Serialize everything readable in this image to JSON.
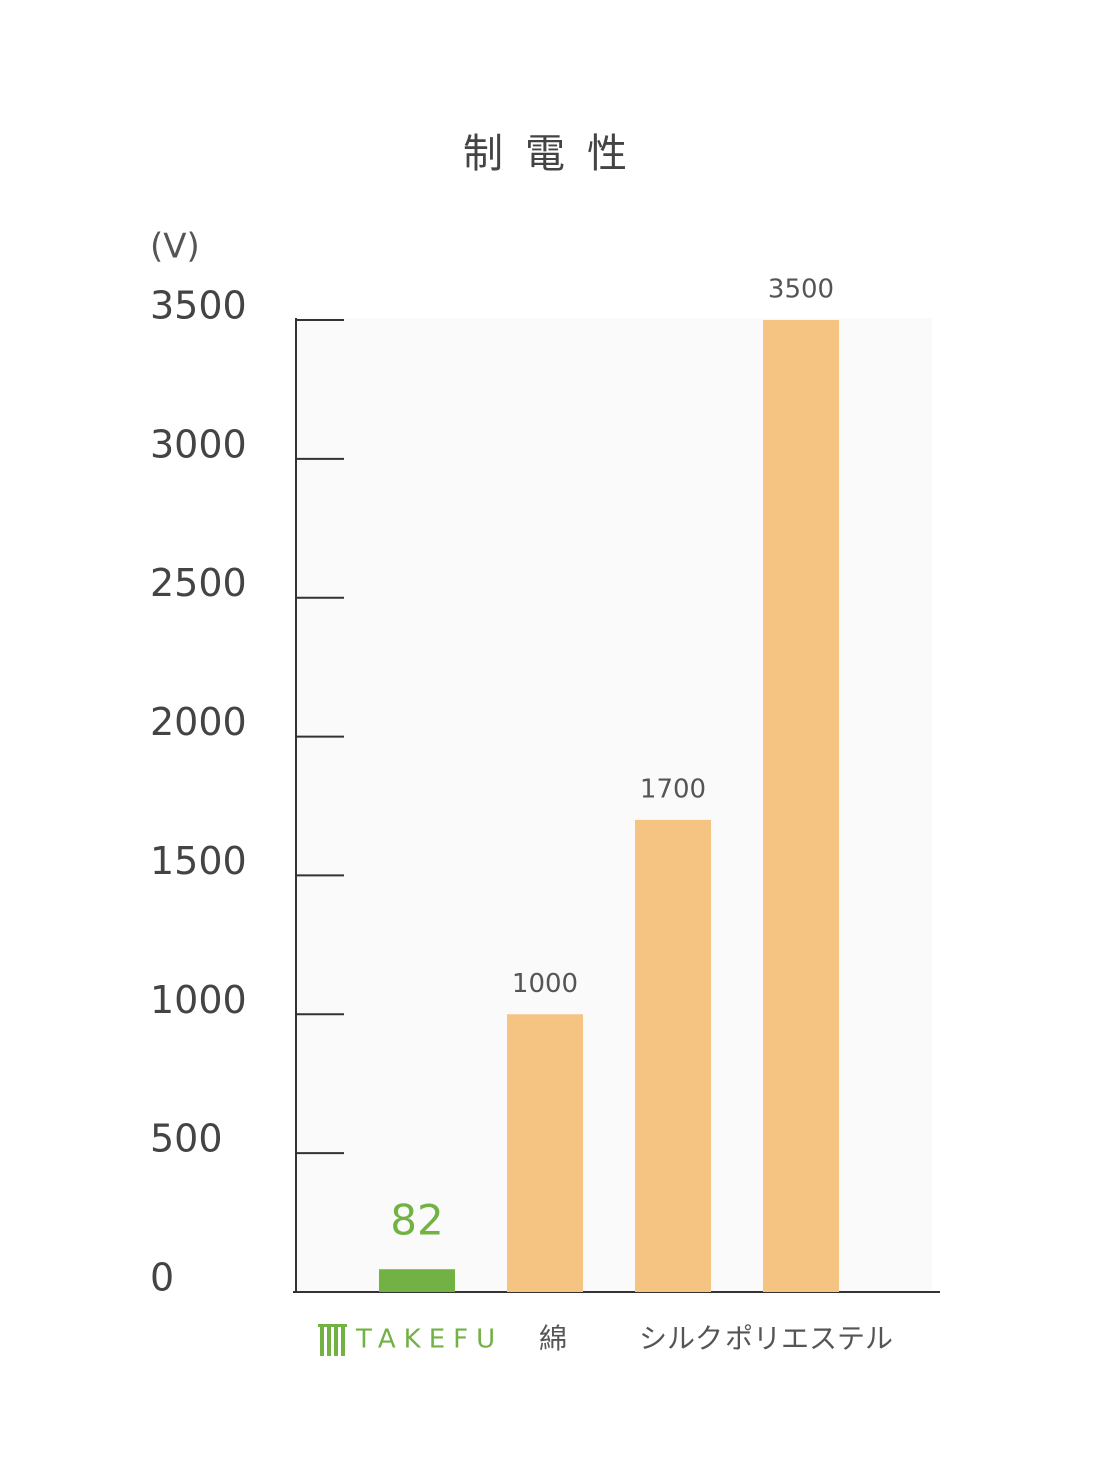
{
  "chart_data": {
    "type": "bar",
    "title": "制電性",
    "y_label": "(V)",
    "categories": [
      "TAKEFU",
      "綿",
      "シルク",
      "ポリエステル"
    ],
    "values": [
      82,
      1000,
      1700,
      3500
    ],
    "colors": [
      "#72b245",
      "#f5c382",
      "#f5c382",
      "#f5c382"
    ],
    "highlight_index": 0,
    "ylim": [
      0,
      3500
    ],
    "yticks": [
      0,
      500,
      1000,
      1500,
      2000,
      2500,
      3000,
      3500
    ]
  }
}
